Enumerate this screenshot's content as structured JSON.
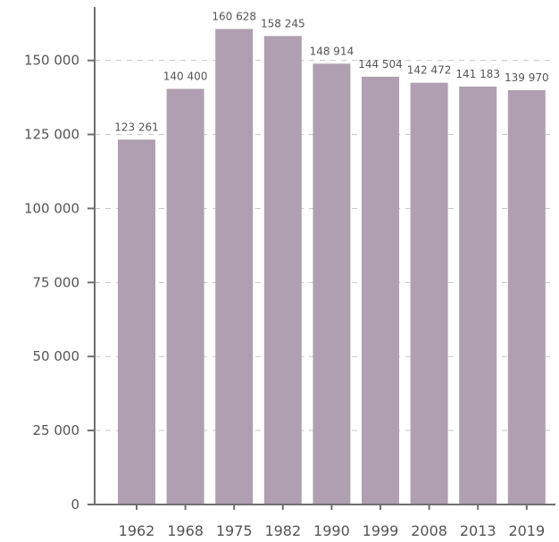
{
  "chart_data": {
    "type": "bar",
    "title": "",
    "xlabel": "",
    "ylabel": "",
    "categories": [
      "1962",
      "1968",
      "1975",
      "1982",
      "1990",
      "1999",
      "2008",
      "2013",
      "2019"
    ],
    "values": [
      123261,
      140400,
      160628,
      158245,
      148914,
      144504,
      142472,
      141183,
      139970
    ],
    "value_labels": [
      "123 261",
      "140 400",
      "160 628",
      "158 245",
      "148 914",
      "144 504",
      "142 472",
      "141 183",
      "139 970"
    ],
    "ylim": [
      0,
      168000
    ],
    "yticks": [
      0,
      25000,
      50000,
      75000,
      100000,
      125000,
      150000
    ],
    "ytick_labels": [
      "0",
      "25 000",
      "50 000",
      "75 000",
      "100 000",
      "125 000",
      "150 000"
    ],
    "grid": true,
    "legend": "none",
    "bar_color": "#b09fb1"
  }
}
